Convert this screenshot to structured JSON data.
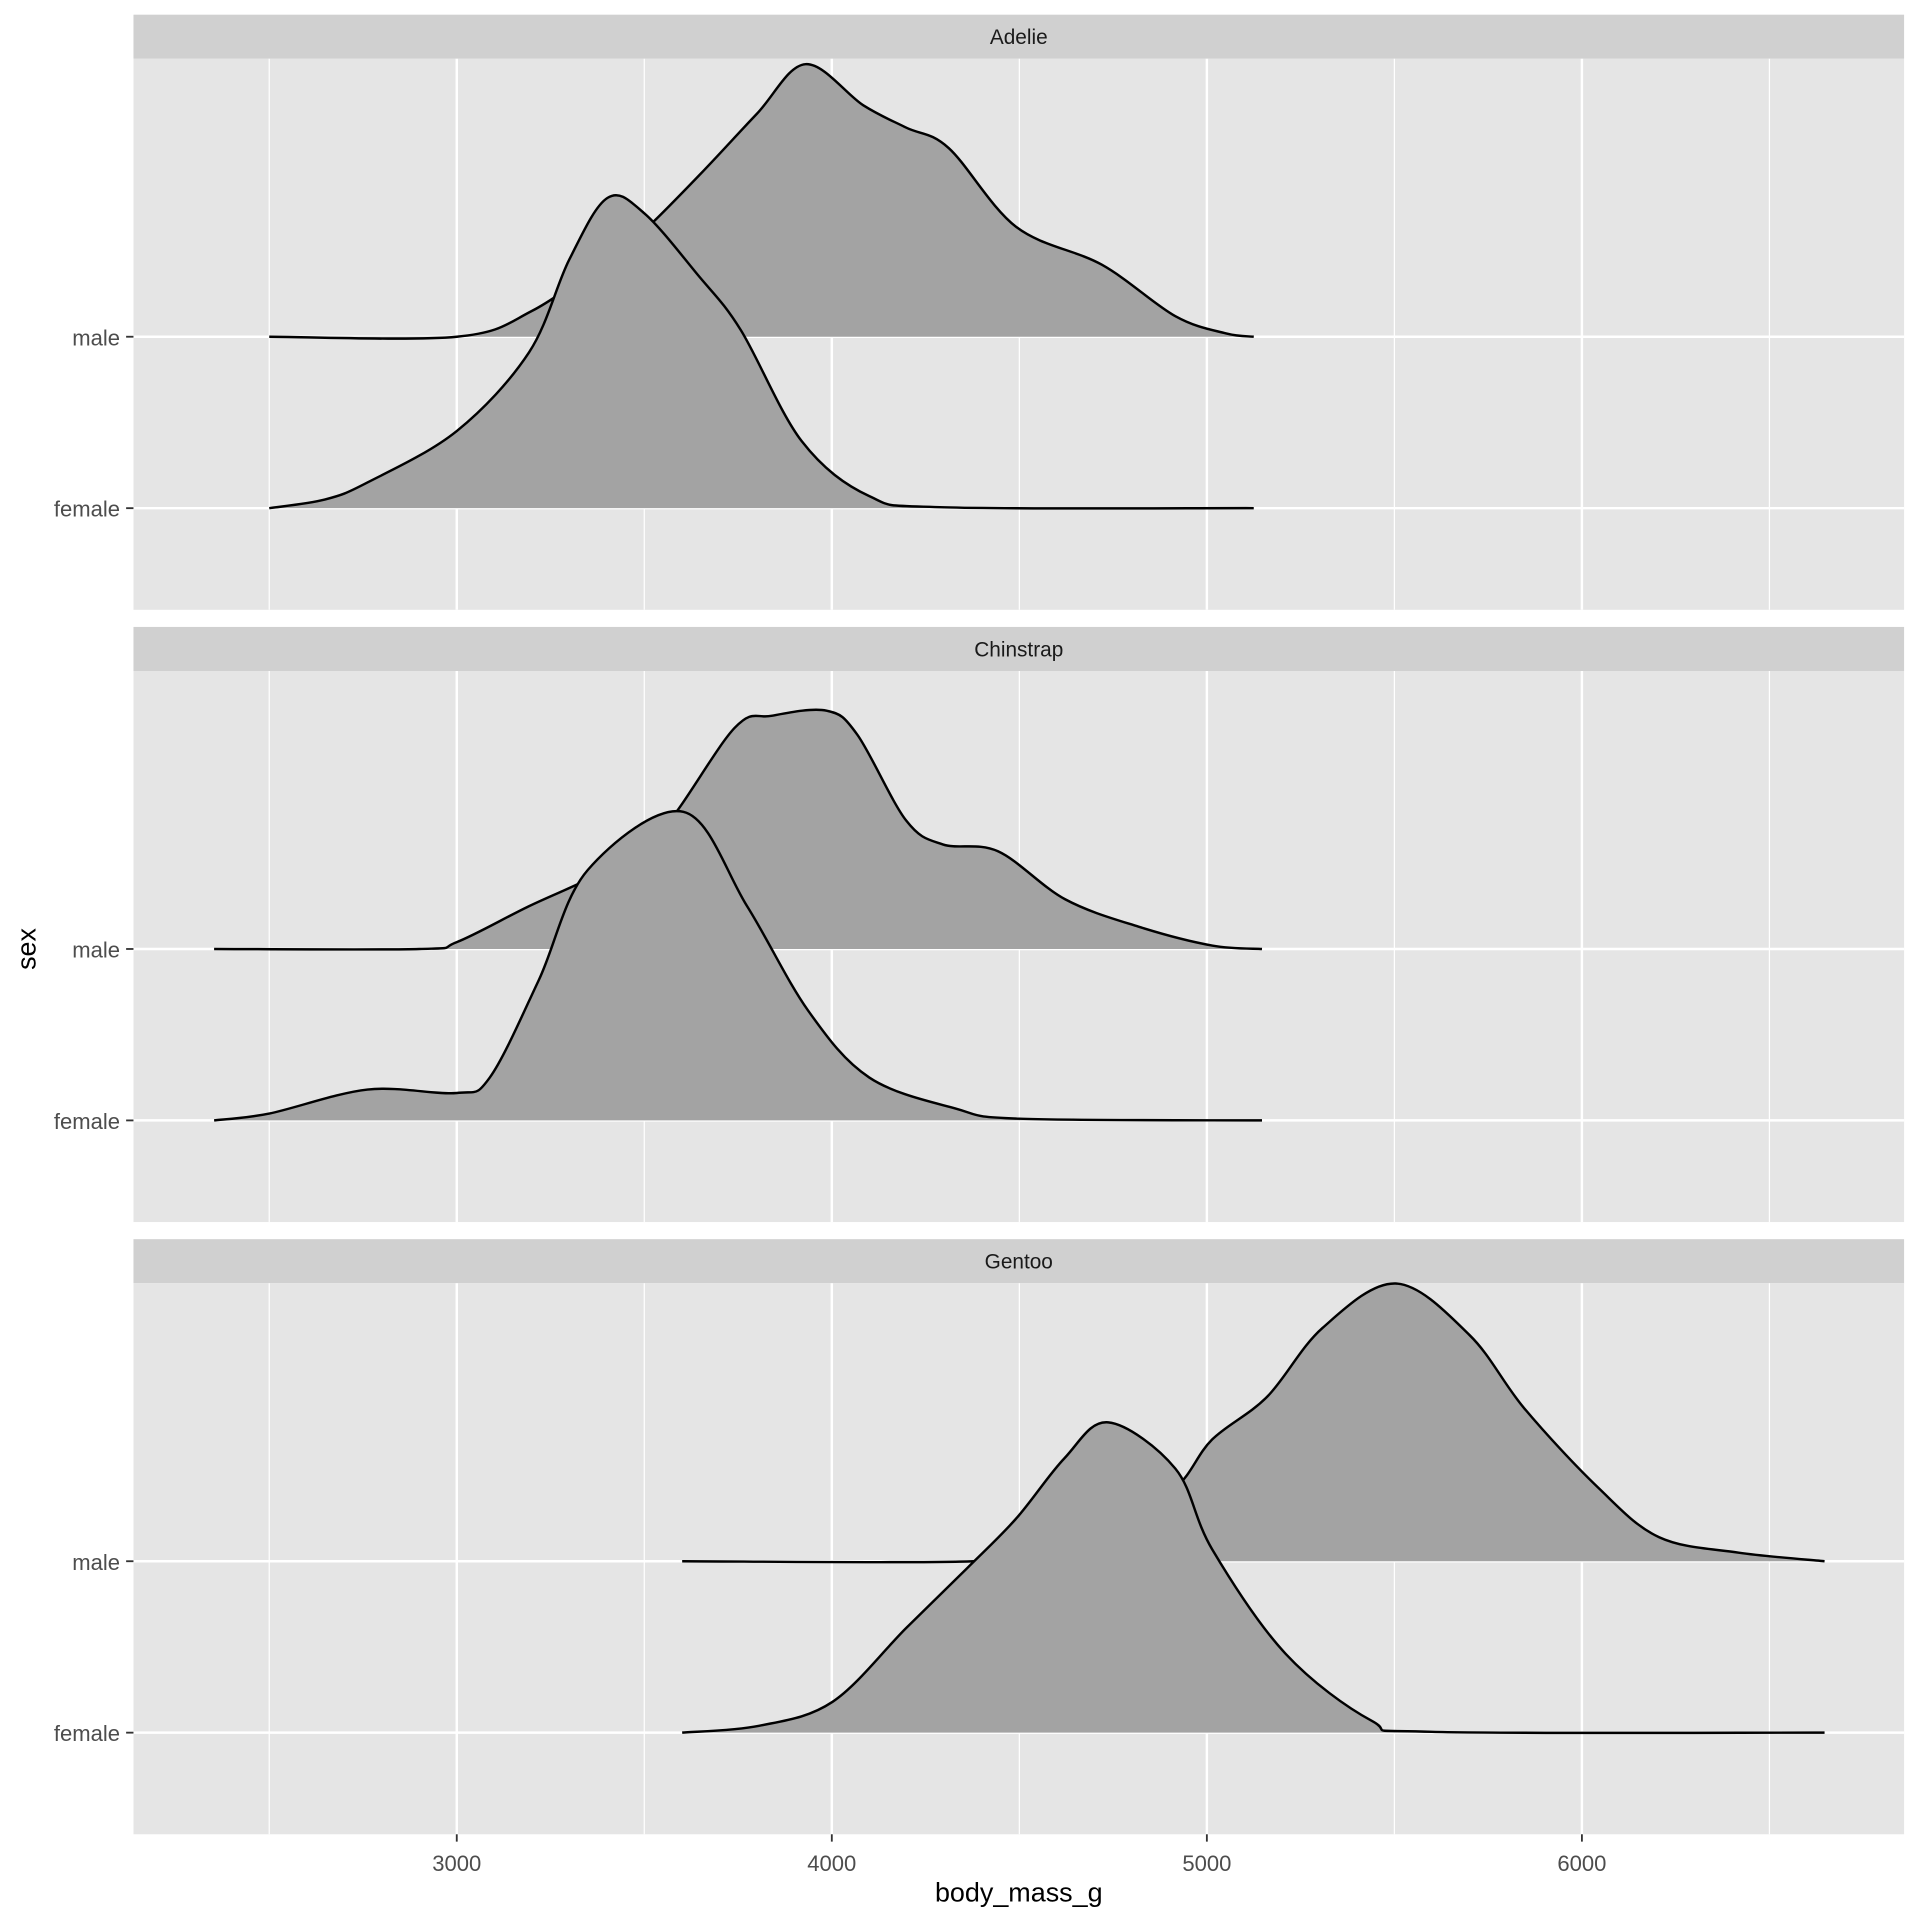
{
  "chart_data": {
    "type": "ridgeline",
    "xlabel": "body_mass_g",
    "ylabel": "sex",
    "xlim": [
      2138,
      6859
    ],
    "x_ticks": [
      3000,
      4000,
      5000,
      6000
    ],
    "x_tick_labels": [
      "3000",
      "4000",
      "5000",
      "6000"
    ],
    "y_categories": [
      "female",
      "male"
    ],
    "grid": true,
    "colors": {
      "panel": "#e5e5e5",
      "strip": "#d0d0d0",
      "ridge_fill": "#a3a3a3",
      "ridge_line": "#000000"
    },
    "facets": [
      {
        "label": "Adelie",
        "ridges": {
          "male": [
            [
              2500,
              0
            ],
            [
              3000,
              0
            ],
            [
              3200,
              0.15
            ],
            [
              3400,
              0.45
            ],
            [
              3500,
              0.62
            ],
            [
              3650,
              0.95
            ],
            [
              3800,
              1.3
            ],
            [
              3930,
              1.59
            ],
            [
              4084,
              1.35
            ],
            [
              4198,
              1.22
            ],
            [
              4312,
              1.1
            ],
            [
              4492,
              0.64
            ],
            [
              4720,
              0.42
            ],
            [
              4916,
              0.12
            ],
            [
              5050,
              0.02
            ],
            [
              5125,
              0
            ]
          ],
          "female": [
            [
              2500,
              0
            ],
            [
              2648,
              0.05
            ],
            [
              2762,
              0.15
            ],
            [
              3000,
              0.45
            ],
            [
              3193,
              0.91
            ],
            [
              3300,
              1.45
            ],
            [
              3402,
              1.81
            ],
            [
              3500,
              1.72
            ],
            [
              3643,
              1.36
            ],
            [
              3757,
              1.04
            ],
            [
              3920,
              0.39
            ],
            [
              4100,
              0.07
            ],
            [
              4300,
              0.005
            ],
            [
              5125,
              0
            ]
          ]
        }
      },
      {
        "label": "Chinstrap",
        "ridges": {
          "male": [
            [
              2353,
              0
            ],
            [
              2900,
              0
            ],
            [
              3000,
              0.04
            ],
            [
              3193,
              0.25
            ],
            [
              3398,
              0.46
            ],
            [
              3550,
              0.7
            ],
            [
              3741,
              1.29
            ],
            [
              3839,
              1.36
            ],
            [
              3986,
              1.39
            ],
            [
              4068,
              1.25
            ],
            [
              4198,
              0.75
            ],
            [
              4296,
              0.61
            ],
            [
              4443,
              0.57
            ],
            [
              4622,
              0.29
            ],
            [
              4818,
              0.13
            ],
            [
              5014,
              0.02
            ],
            [
              5147,
              0
            ]
          ],
          "female": [
            [
              2353,
              0
            ],
            [
              2500,
              0.04
            ],
            [
              2762,
              0.18
            ],
            [
              3000,
              0.16
            ],
            [
              3088,
              0.25
            ],
            [
              3219,
              0.82
            ],
            [
              3349,
              1.46
            ],
            [
              3604,
              1.8
            ],
            [
              3774,
              1.25
            ],
            [
              3937,
              0.64
            ],
            [
              4100,
              0.25
            ],
            [
              4329,
              0.07
            ],
            [
              4500,
              0.01
            ],
            [
              5147,
              0
            ]
          ]
        }
      },
      {
        "label": "Gentoo",
        "ridges": {
          "male": [
            [
              3601,
              0
            ],
            [
              4378,
              0
            ],
            [
              4550,
              0.08
            ],
            [
              4750,
              0.25
            ],
            [
              4916,
              0.43
            ],
            [
              5014,
              0.71
            ],
            [
              5161,
              0.96
            ],
            [
              5308,
              1.36
            ],
            [
              5504,
              1.62
            ],
            [
              5700,
              1.32
            ],
            [
              5847,
              0.89
            ],
            [
              6043,
              0.43
            ],
            [
              6206,
              0.14
            ],
            [
              6418,
              0.05
            ],
            [
              6647,
              0
            ]
          ],
          "female": [
            [
              3601,
              0
            ],
            [
              3806,
              0.04
            ],
            [
              4002,
              0.18
            ],
            [
              4198,
              0.61
            ],
            [
              4361,
              0.96
            ],
            [
              4492,
              1.25
            ],
            [
              4620,
              1.6
            ],
            [
              4737,
              1.81
            ],
            [
              4916,
              1.54
            ],
            [
              5014,
              1.07
            ],
            [
              5210,
              0.46
            ],
            [
              5439,
              0.07
            ],
            [
              5600,
              0.005
            ],
            [
              6647,
              0
            ]
          ]
        }
      }
    ]
  }
}
